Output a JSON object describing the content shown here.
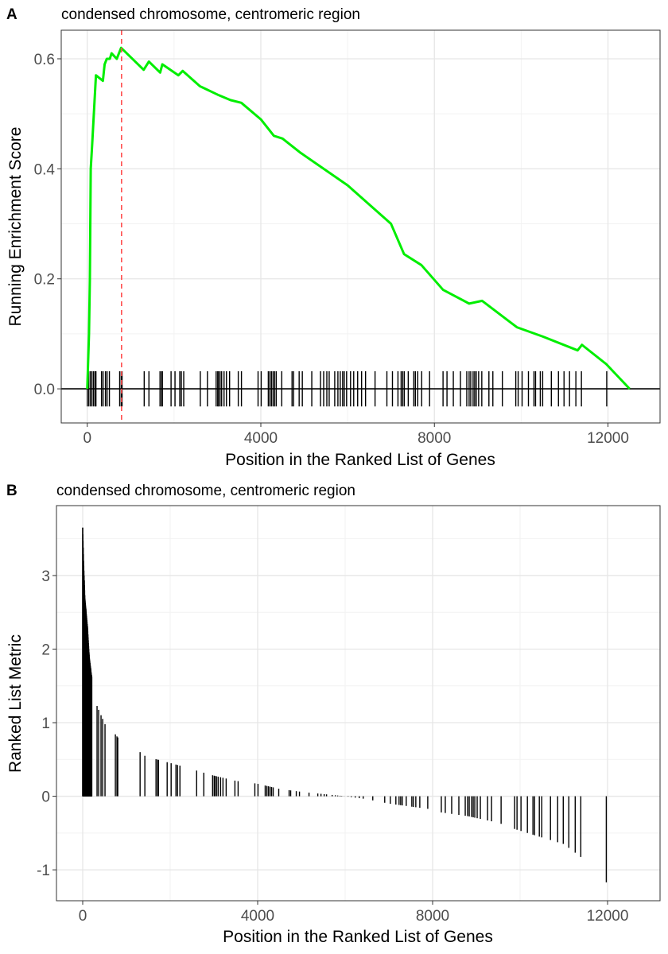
{
  "chart_data": [
    {
      "type": "line",
      "panel_tag": "A",
      "title": "condensed chromosome, centromeric region",
      "xlabel": "Position in the Ranked List of Genes",
      "ylabel": "Running Enrichment Score",
      "xlim": [
        -600,
        13200
      ],
      "ylim": [
        -0.062,
        0.652
      ],
      "xticks": [
        0,
        4000,
        8000,
        12000
      ],
      "xtick_labels": [
        "0",
        "4000",
        "8000",
        "12000"
      ],
      "yticks": [
        0.0,
        0.2,
        0.4,
        0.6
      ],
      "ytick_labels": [
        "0.0",
        "0.2",
        "0.4",
        "0.6"
      ],
      "grid": true,
      "line_color": "#00ee00",
      "peak_line_color": "#ff4d4d",
      "peak_position": 790,
      "running_score": [
        [
          0,
          0
        ],
        [
          40,
          0.1
        ],
        [
          60,
          0.2
        ],
        [
          80,
          0.4
        ],
        [
          110,
          0.44
        ],
        [
          200,
          0.57
        ],
        [
          360,
          0.56
        ],
        [
          400,
          0.59
        ],
        [
          450,
          0.6
        ],
        [
          520,
          0.6
        ],
        [
          560,
          0.61
        ],
        [
          680,
          0.6
        ],
        [
          780,
          0.62
        ],
        [
          1300,
          0.58
        ],
        [
          1420,
          0.595
        ],
        [
          1680,
          0.575
        ],
        [
          1730,
          0.59
        ],
        [
          2100,
          0.57
        ],
        [
          2200,
          0.578
        ],
        [
          2600,
          0.55
        ],
        [
          3000,
          0.535
        ],
        [
          3300,
          0.525
        ],
        [
          3550,
          0.52
        ],
        [
          4000,
          0.49
        ],
        [
          4300,
          0.46
        ],
        [
          4500,
          0.455
        ],
        [
          4900,
          0.43
        ],
        [
          6000,
          0.37
        ],
        [
          7000,
          0.3
        ],
        [
          7300,
          0.245
        ],
        [
          7700,
          0.225
        ],
        [
          8200,
          0.18
        ],
        [
          8800,
          0.155
        ],
        [
          9100,
          0.16
        ],
        [
          9900,
          0.112
        ],
        [
          10500,
          0.095
        ],
        [
          11300,
          0.07
        ],
        [
          11400,
          0.08
        ],
        [
          11960,
          0.045
        ],
        [
          12500,
          0
        ]
      ],
      "hit_positions": [
        0,
        36,
        73,
        109,
        146,
        182,
        200,
        328,
        364,
        419,
        456,
        510,
        747,
        783,
        802,
        1312,
        1421,
        1676,
        1713,
        1731,
        1931,
        2022,
        2132,
        2168,
        2223,
        2605,
        2769,
        2970,
        3006,
        3025,
        3061,
        3097,
        3152,
        3207,
        3280,
        3480,
        3553,
        3936,
        4008,
        4172,
        4209,
        4245,
        4282,
        4318,
        4355,
        4482,
        4719,
        4755,
        4883,
        4956,
        5174,
        5375,
        5448,
        5521,
        5575,
        5703,
        5776,
        5830,
        5885,
        5922,
        5976,
        6067,
        6140,
        6231,
        6322,
        6413,
        6632,
        6905,
        7033,
        7160,
        7233,
        7270,
        7306,
        7397,
        7525,
        7561,
        7616,
        7707,
        7889,
        8199,
        8290,
        8436,
        8600,
        8746,
        8800,
        8837,
        8892,
        8928,
        8964,
        9019,
        9092,
        9256,
        9347,
        9566,
        9875,
        9930,
        10021,
        10167,
        10294,
        10331,
        10440,
        10495,
        10695,
        10859,
        10987,
        11114,
        11260,
        11388,
        11971
      ]
    },
    {
      "type": "bar",
      "panel_tag": "B",
      "title": "condensed chromosome, centromeric region",
      "xlabel": "Position in the Ranked List of Genes",
      "ylabel": "Ranked List Metric",
      "xlim": [
        -600,
        13200
      ],
      "ylim": [
        -1.42,
        3.95
      ],
      "xticks": [
        0,
        4000,
        8000,
        12000
      ],
      "xtick_labels": [
        "0",
        "4000",
        "8000",
        "12000"
      ],
      "yticks": [
        -1,
        0,
        1,
        2,
        3
      ],
      "ytick_labels": [
        "-1",
        "0",
        "1",
        "2",
        "3"
      ],
      "grid": true,
      "bar_color": "#000000",
      "metric_curve": [
        [
          0,
          3.65
        ],
        [
          20,
          3.2
        ],
        [
          50,
          2.7
        ],
        [
          110,
          2.3
        ],
        [
          150,
          1.9
        ],
        [
          200,
          1.65
        ],
        [
          330,
          1.22
        ],
        [
          420,
          1.1
        ],
        [
          510,
          0.98
        ],
        [
          750,
          0.84
        ],
        [
          800,
          0.8
        ],
        [
          1310,
          0.6
        ],
        [
          1420,
          0.55
        ],
        [
          1700,
          0.5
        ],
        [
          2200,
          0.42
        ],
        [
          2600,
          0.35
        ],
        [
          3000,
          0.28
        ],
        [
          3500,
          0.21
        ],
        [
          4000,
          0.17
        ],
        [
          4500,
          0.1
        ],
        [
          5000,
          0.06
        ],
        [
          5500,
          0.03
        ],
        [
          6000,
          0.0
        ],
        [
          6500,
          -0.04
        ],
        [
          7000,
          -0.1
        ],
        [
          7500,
          -0.14
        ],
        [
          8000,
          -0.18
        ],
        [
          8200,
          -0.22
        ],
        [
          8800,
          -0.27
        ],
        [
          9500,
          -0.36
        ],
        [
          9900,
          -0.45
        ],
        [
          10500,
          -0.56
        ],
        [
          11000,
          -0.65
        ],
        [
          11400,
          -0.83
        ],
        [
          11971,
          -1.17
        ]
      ]
    }
  ]
}
